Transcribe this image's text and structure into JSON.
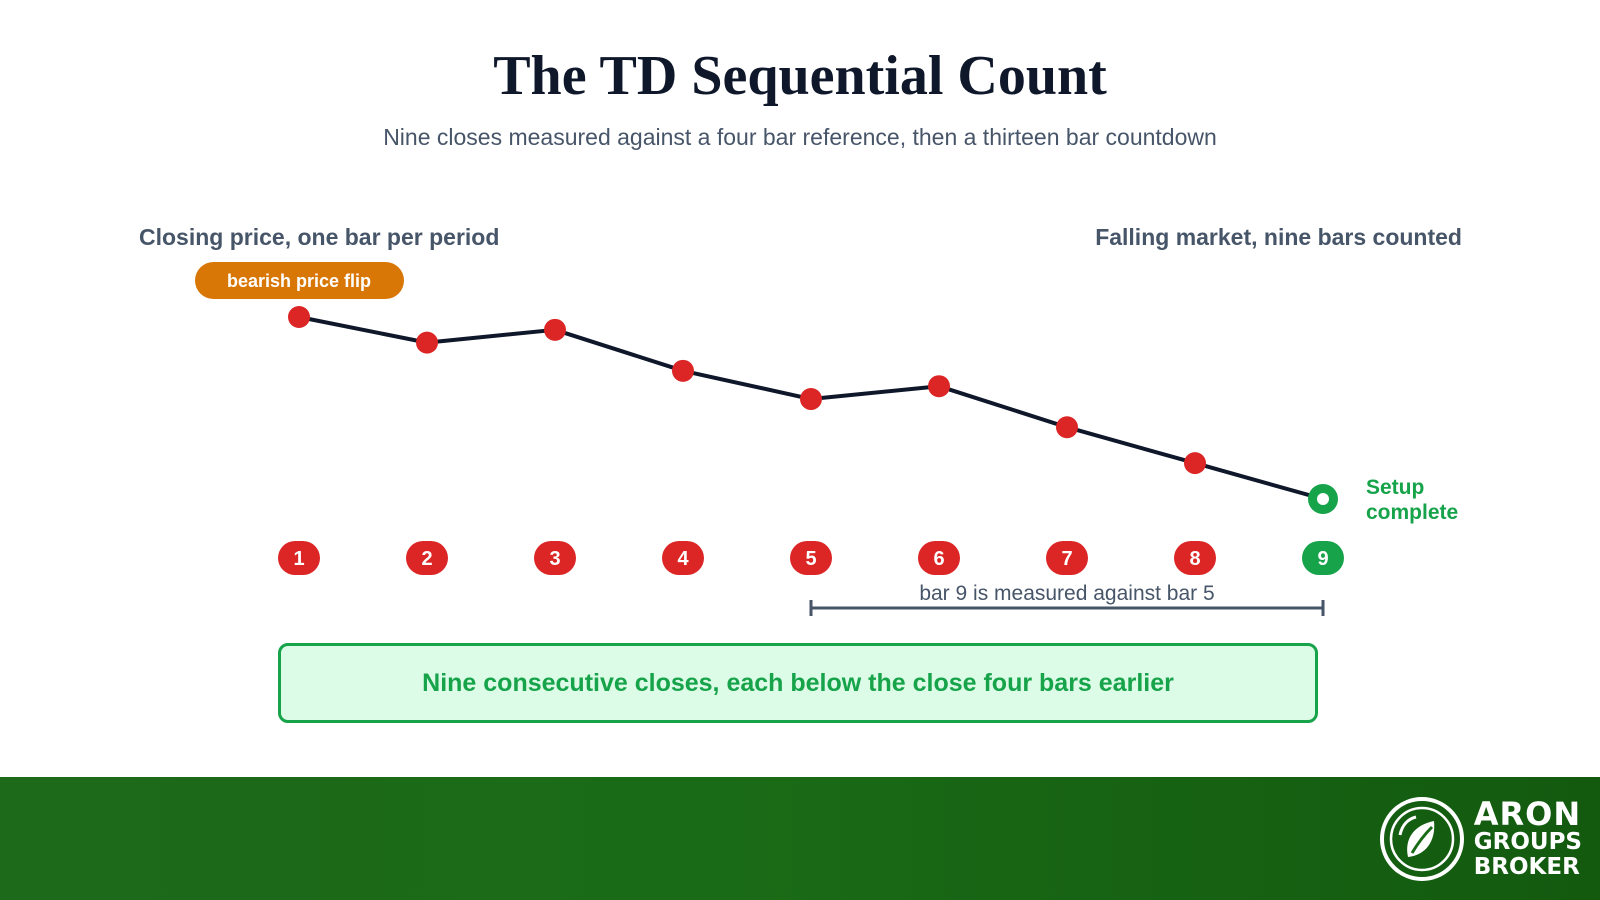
{
  "title": "The TD Sequential Count",
  "subtitle": "Nine closes measured against a four bar reference, then a thirteen bar countdown",
  "left_label": "Closing price, one bar per period",
  "right_label": "Falling market, nine bars counted",
  "flip_badge": "bearish price flip",
  "setup_label_line1": "Setup",
  "setup_label_line2": "complete",
  "bracket_label": "bar 9 is measured against bar 5",
  "summary": "Nine consecutive closes, each below the close four bars earlier",
  "brand": {
    "line1": "ARON",
    "line2": "GROUPS",
    "line3": "BROKER"
  },
  "colors": {
    "point": "#dc2626",
    "complete": "#16a34a",
    "line": "#0f172a",
    "badge": "#d97706",
    "bracket": "#475569"
  },
  "chart_data": {
    "type": "line",
    "categories": [
      "1",
      "2",
      "3",
      "4",
      "5",
      "6",
      "7",
      "8",
      "9"
    ],
    "series": [
      {
        "values": [
          100,
          95,
          97.5,
          89.5,
          84,
          86.5,
          78.5,
          71.5,
          64.5
        ]
      }
    ],
    "highlight_index": 8,
    "bracket": [
      5,
      9
    ]
  }
}
